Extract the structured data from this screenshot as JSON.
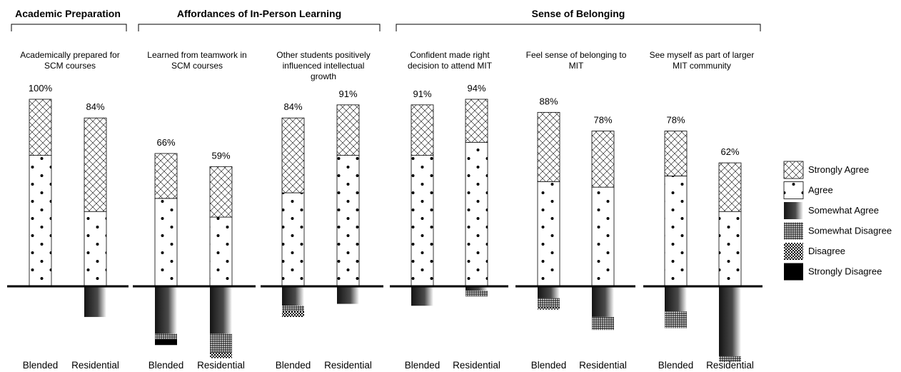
{
  "chart_data": {
    "type": "bar",
    "stacking": "diverging",
    "groups": [
      {
        "title": "Academic Preparation",
        "questions": [
          0
        ]
      },
      {
        "title": "Affordances of In-Person Learning",
        "questions": [
          1,
          2
        ]
      },
      {
        "title": "Sense of Belonging",
        "questions": [
          3,
          4,
          5
        ]
      }
    ],
    "legend": {
      "position": "right",
      "entries": [
        {
          "key": "strongly_agree",
          "label": "Strongly Agree"
        },
        {
          "key": "agree",
          "label": "Agree"
        },
        {
          "key": "somewhat_agree",
          "label": "Somewhat Agree"
        },
        {
          "key": "somewhat_disagree",
          "label": "Somewhat Disagree"
        },
        {
          "key": "disagree",
          "label": "Disagree"
        },
        {
          "key": "strongly_disagree",
          "label": "Strongly Disagree"
        }
      ]
    },
    "questions": [
      {
        "title_lines": [
          "Academically prepared for",
          "SCM courses"
        ],
        "bars": [
          {
            "category": "Blended",
            "total_label": "100%",
            "strongly_agree": 30,
            "agree": 70,
            "somewhat_agree": 0,
            "somewhat_disagree": 0,
            "disagree": 0,
            "strongly_disagree": 0
          },
          {
            "category": "Residential",
            "total_label": "84%",
            "strongly_agree": 50,
            "agree": 40,
            "somewhat_agree": 16,
            "somewhat_disagree": 0,
            "disagree": 0,
            "strongly_disagree": 0
          }
        ]
      },
      {
        "title_lines": [
          "Learned from teamwork in",
          "SCM courses"
        ],
        "bars": [
          {
            "category": "Blended",
            "total_label": "66%",
            "strongly_agree": 24,
            "agree": 47,
            "somewhat_agree": 25,
            "somewhat_disagree": 3,
            "disagree": 0,
            "strongly_disagree": 3
          },
          {
            "category": "Residential",
            "total_label": "59%",
            "strongly_agree": 27,
            "agree": 37,
            "somewhat_agree": 25,
            "somewhat_disagree": 10,
            "disagree": 3,
            "strongly_disagree": 0
          }
        ]
      },
      {
        "title_lines": [
          "Other students positively",
          "influenced intellectual",
          "growth"
        ],
        "bars": [
          {
            "category": "Blended",
            "total_label": "84%",
            "strongly_agree": 40,
            "agree": 50,
            "somewhat_agree": 10,
            "somewhat_disagree": 3,
            "disagree": 3,
            "strongly_disagree": 0
          },
          {
            "category": "Residential",
            "total_label": "91%",
            "strongly_agree": 27,
            "agree": 70,
            "somewhat_agree": 9,
            "somewhat_disagree": 0,
            "disagree": 0,
            "strongly_disagree": 0
          }
        ]
      },
      {
        "title_lines": [
          "Confident made right",
          "decision to attend MIT"
        ],
        "bars": [
          {
            "category": "Blended",
            "total_label": "91%",
            "strongly_agree": 27,
            "agree": 70,
            "somewhat_agree": 10,
            "somewhat_disagree": 0,
            "disagree": 0,
            "strongly_disagree": 0
          },
          {
            "category": "Residential",
            "total_label": "94%",
            "strongly_agree": 23,
            "agree": 77,
            "somewhat_agree": 2,
            "somewhat_disagree": 3,
            "disagree": 0,
            "strongly_disagree": 0
          }
        ]
      },
      {
        "title_lines": [
          "Feel sense of belonging to",
          "MIT"
        ],
        "bars": [
          {
            "category": "Blended",
            "total_label": "88%",
            "strongly_agree": 37,
            "agree": 56,
            "somewhat_agree": 6,
            "somewhat_disagree": 5,
            "disagree": 1,
            "strongly_disagree": 0
          },
          {
            "category": "Residential",
            "total_label": "78%",
            "strongly_agree": 30,
            "agree": 53,
            "somewhat_agree": 16,
            "somewhat_disagree": 7,
            "disagree": 0,
            "strongly_disagree": 0
          }
        ]
      },
      {
        "title_lines": [
          "See myself as part of larger",
          "MIT community"
        ],
        "bars": [
          {
            "category": "Blended",
            "total_label": "78%",
            "strongly_agree": 24,
            "agree": 59,
            "somewhat_agree": 13,
            "somewhat_disagree": 9,
            "disagree": 0,
            "strongly_disagree": 0
          },
          {
            "category": "Residential",
            "total_label": "62%",
            "strongly_agree": 26,
            "agree": 40,
            "somewhat_agree": 37,
            "somewhat_disagree": 3,
            "disagree": 0,
            "strongly_disagree": 0
          }
        ]
      }
    ],
    "colors": {
      "ink": "#000000",
      "gradient_dark": "#1a1a1a",
      "gradient_light": "#ffffff",
      "background": "#ffffff"
    }
  }
}
